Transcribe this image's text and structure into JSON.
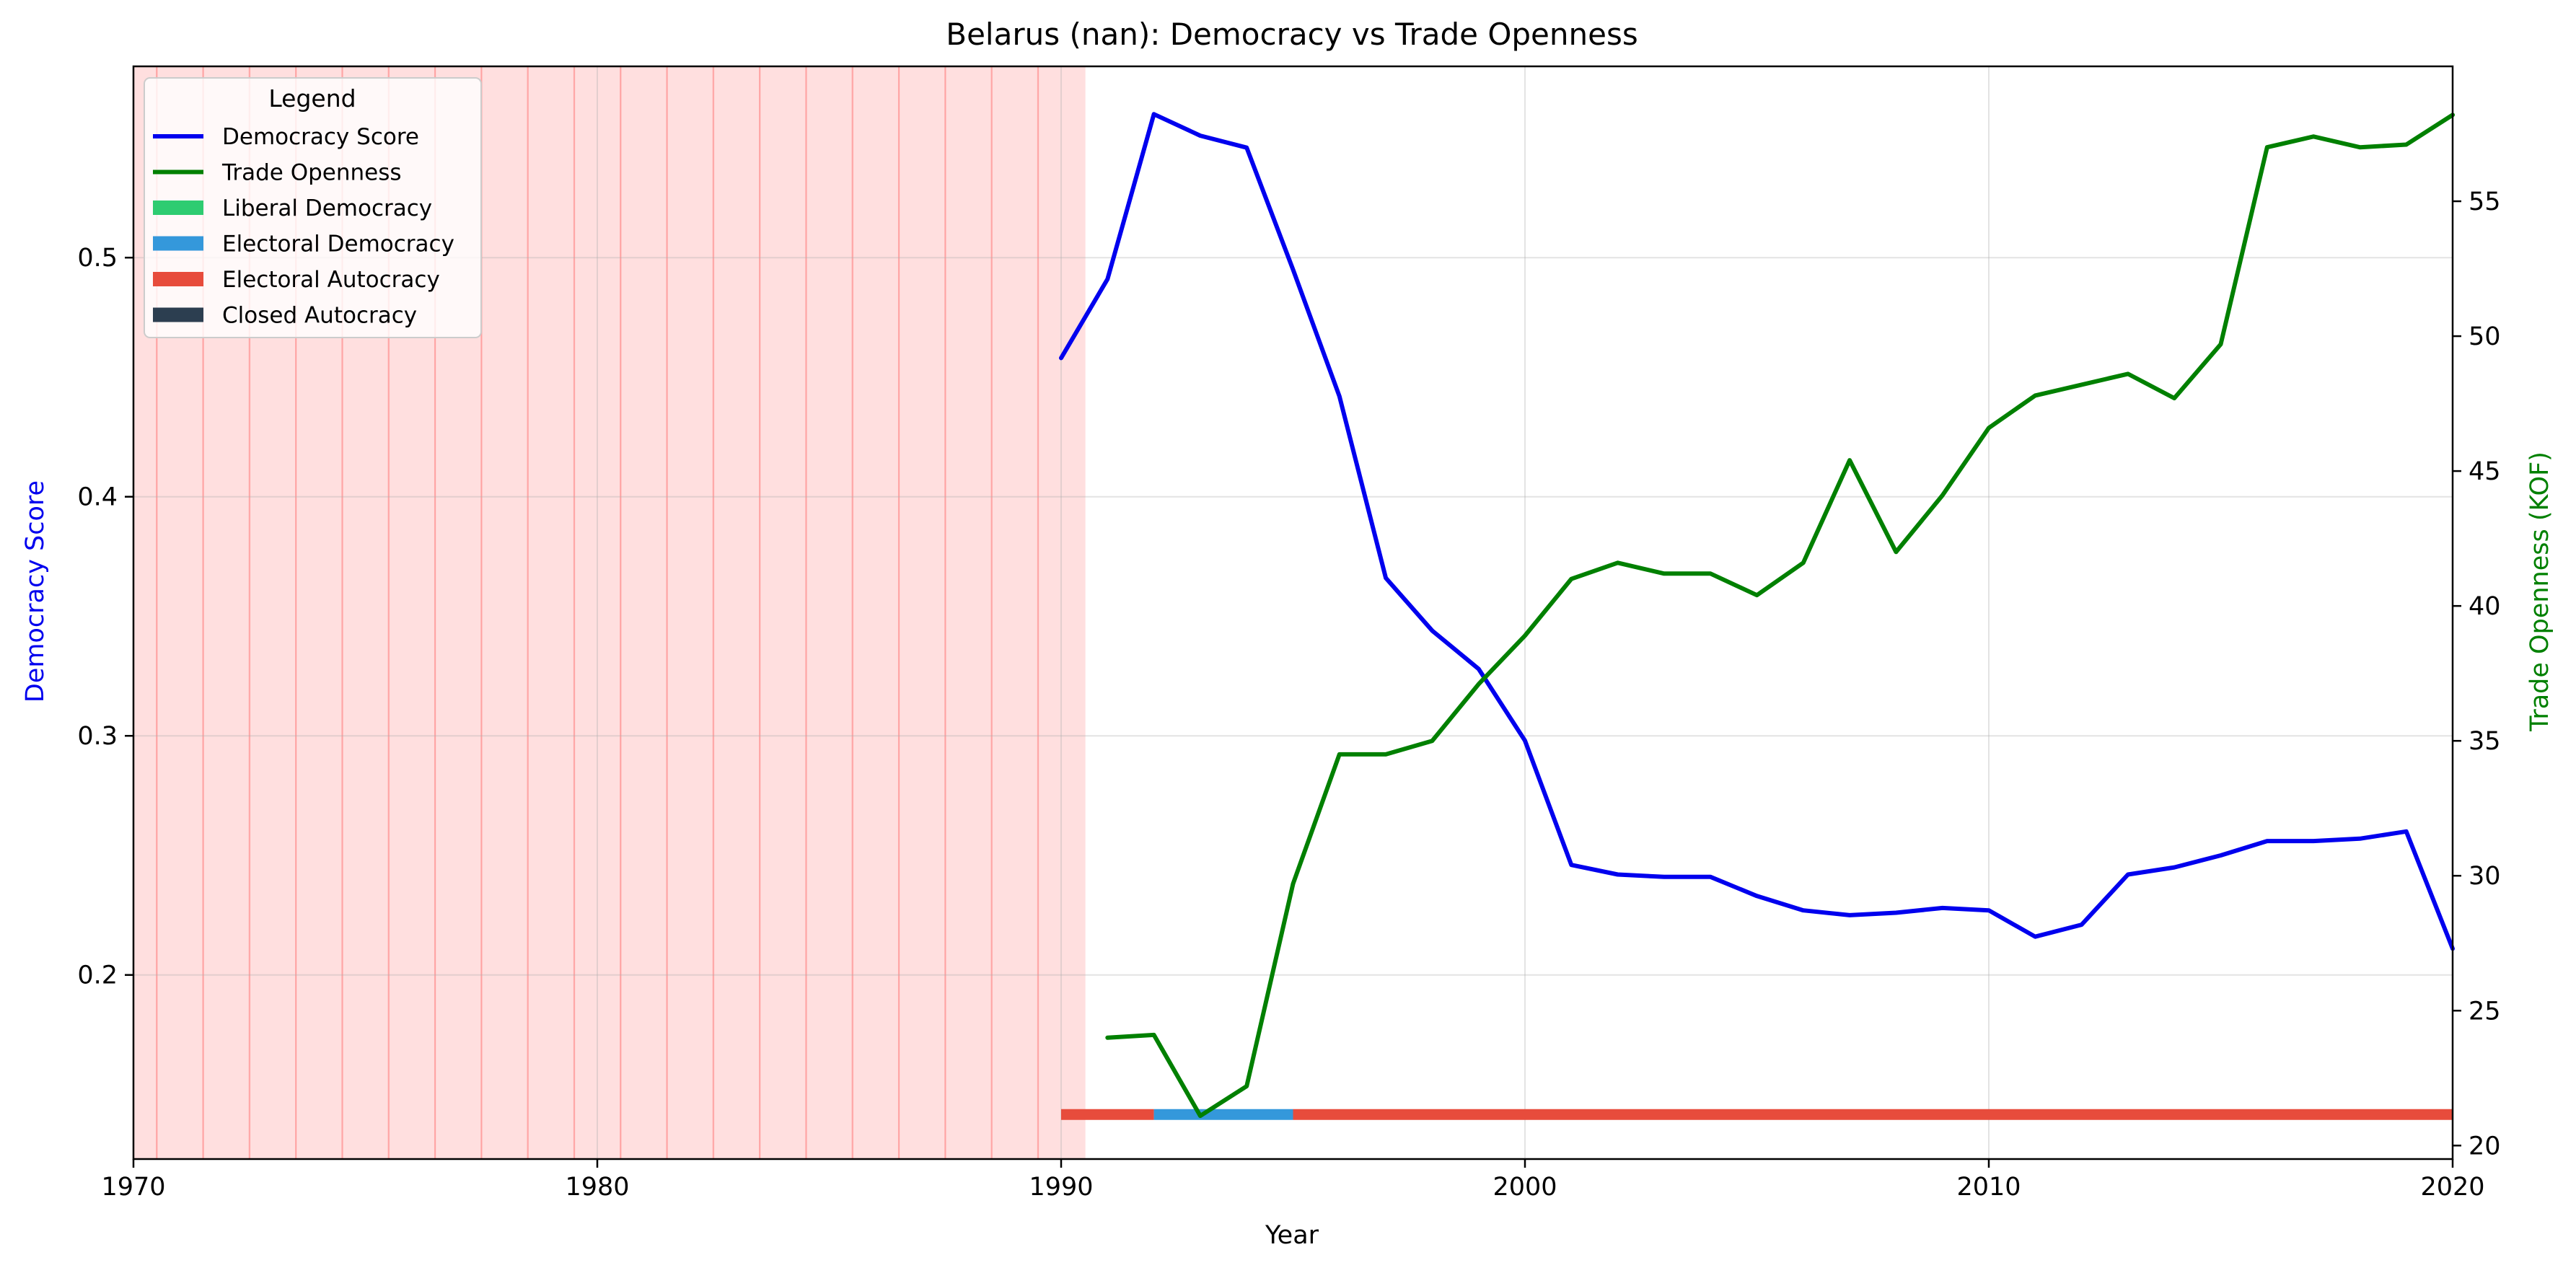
{
  "colors": {
    "democracy": "#0000ee",
    "trade": "#008000",
    "liberal_democracy": "#2ecc71",
    "electoral_democracy": "#3498db",
    "electoral_autocracy": "#e74c3c",
    "closed_autocracy": "#2c3e50",
    "shade": "#ff8080"
  },
  "chart_data": {
    "type": "line",
    "title": "Belarus (nan): Democracy vs Trade Openness",
    "xlabel": "Year",
    "ylabel_left": "Democracy Score",
    "ylabel_right": "Trade Openness (KOF)",
    "xlim": [
      1970,
      2020
    ],
    "ylim_left": [
      0.123,
      0.58
    ],
    "ylim_right": [
      19.5,
      60
    ],
    "x_ticks": [
      1970,
      1980,
      1990,
      2000,
      2010,
      2020
    ],
    "y_ticks_left": [
      0.2,
      0.3,
      0.4,
      0.5
    ],
    "y_ticks_right": [
      20,
      25,
      30,
      35,
      40,
      45,
      50,
      55
    ],
    "grid": true,
    "legend_position": "top-left",
    "legend": {
      "title": "Legend",
      "items": [
        {
          "label": "Democracy Score",
          "kind": "line",
          "color_key": "democracy"
        },
        {
          "label": "Trade Openness",
          "kind": "line",
          "color_key": "trade"
        },
        {
          "label": "Liberal Democracy",
          "kind": "patch",
          "color_key": "liberal_democracy"
        },
        {
          "label": "Electoral Democracy",
          "kind": "patch",
          "color_key": "electoral_democracy"
        },
        {
          "label": "Electoral Autocracy",
          "kind": "patch",
          "color_key": "electoral_autocracy"
        },
        {
          "label": "Closed Autocracy",
          "kind": "patch",
          "color_key": "closed_autocracy"
        }
      ]
    },
    "shaded_years": [
      1970,
      1971,
      1972,
      1973,
      1974,
      1975,
      1976,
      1977,
      1978,
      1979,
      1980,
      1981,
      1982,
      1983,
      1984,
      1985,
      1986,
      1987,
      1988,
      1989,
      1990
    ],
    "series": [
      {
        "name": "Democracy Score",
        "axis": "left",
        "color_key": "democracy",
        "x": [
          1990,
          1991,
          1992,
          1993,
          1994,
          1995,
          1996,
          1997,
          1998,
          1999,
          2000,
          2001,
          2002,
          2003,
          2004,
          2005,
          2006,
          2007,
          2008,
          2009,
          2010,
          2011,
          2012,
          2013,
          2014,
          2015,
          2016,
          2017,
          2018,
          2019,
          2020
        ],
        "values": [
          0.458,
          0.491,
          0.56,
          0.551,
          0.546,
          0.495,
          0.442,
          0.366,
          0.344,
          0.328,
          0.298,
          0.246,
          0.242,
          0.241,
          0.241,
          0.233,
          0.227,
          0.225,
          0.226,
          0.228,
          0.227,
          0.216,
          0.221,
          0.242,
          0.245,
          0.25,
          0.256,
          0.256,
          0.257,
          0.26,
          0.211
        ]
      },
      {
        "name": "Trade Openness",
        "axis": "right",
        "color_key": "trade",
        "x": [
          1991,
          1992,
          1993,
          1994,
          1995,
          1996,
          1997,
          1998,
          1999,
          2000,
          2001,
          2002,
          2003,
          2004,
          2005,
          2006,
          2007,
          2008,
          2009,
          2010,
          2011,
          2012,
          2013,
          2014,
          2015,
          2016,
          2017,
          2018,
          2019,
          2020
        ],
        "values": [
          24.0,
          24.1,
          21.1,
          22.2,
          29.7,
          34.5,
          34.5,
          35.0,
          37.1,
          38.9,
          41.0,
          41.6,
          41.2,
          41.2,
          40.4,
          41.6,
          45.4,
          42.0,
          44.1,
          46.6,
          47.8,
          48.2,
          48.6,
          47.7,
          49.7,
          57.0,
          57.4,
          57.0,
          57.1,
          58.2
        ]
      }
    ],
    "regime_bar": [
      {
        "start": 1990,
        "end": 1992,
        "regime": "Electoral Autocracy",
        "color_key": "electoral_autocracy"
      },
      {
        "start": 1992,
        "end": 1995,
        "regime": "Electoral Democracy",
        "color_key": "electoral_democracy"
      },
      {
        "start": 1995,
        "end": 2020,
        "regime": "Electoral Autocracy",
        "color_key": "electoral_autocracy"
      }
    ]
  }
}
